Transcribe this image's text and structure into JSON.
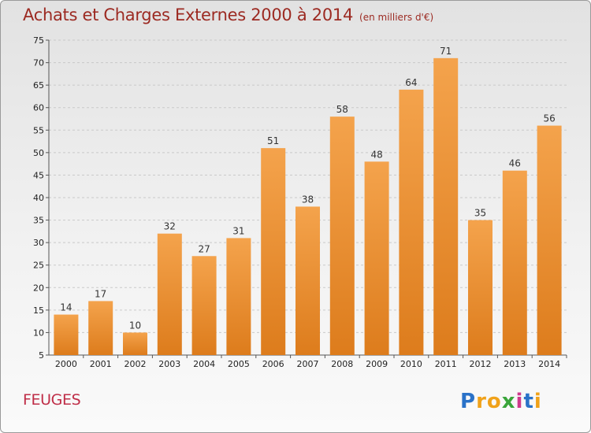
{
  "header": {
    "title": "Achats et Charges Externes 2000 à 2014",
    "subtitle": "(en milliers d'€)"
  },
  "footer": {
    "commune": "FEUGES",
    "brand": {
      "letters": [
        "P",
        "r",
        "o",
        "x",
        "i",
        "t",
        "i"
      ],
      "colors": [
        "#2a72c8",
        "#f0a21a",
        "#f0a21a",
        "#3aa53a",
        "#cf3a8c",
        "#2a72c8",
        "#f0a21a"
      ]
    }
  },
  "colors": {
    "bar_top": "#f4a34c",
    "bar_bottom": "#dd7c1c",
    "title": "#9c2a22",
    "commune": "#bf2d47"
  },
  "chart_data": {
    "type": "bar",
    "title": "Achats et Charges Externes 2000 à 2014",
    "subtitle": "(en milliers d'€)",
    "categories": [
      "2000",
      "2001",
      "2002",
      "2003",
      "2004",
      "2005",
      "2006",
      "2007",
      "2008",
      "2009",
      "2010",
      "2011",
      "2012",
      "2013",
      "2014"
    ],
    "values": [
      14,
      17,
      10,
      32,
      27,
      31,
      51,
      38,
      58,
      48,
      64,
      71,
      35,
      46,
      56
    ],
    "ylim": [
      5,
      75
    ],
    "yticks": [
      5,
      10,
      15,
      20,
      25,
      30,
      35,
      40,
      45,
      50,
      55,
      60,
      65,
      70,
      75
    ],
    "grid": true,
    "data_labels": true
  }
}
